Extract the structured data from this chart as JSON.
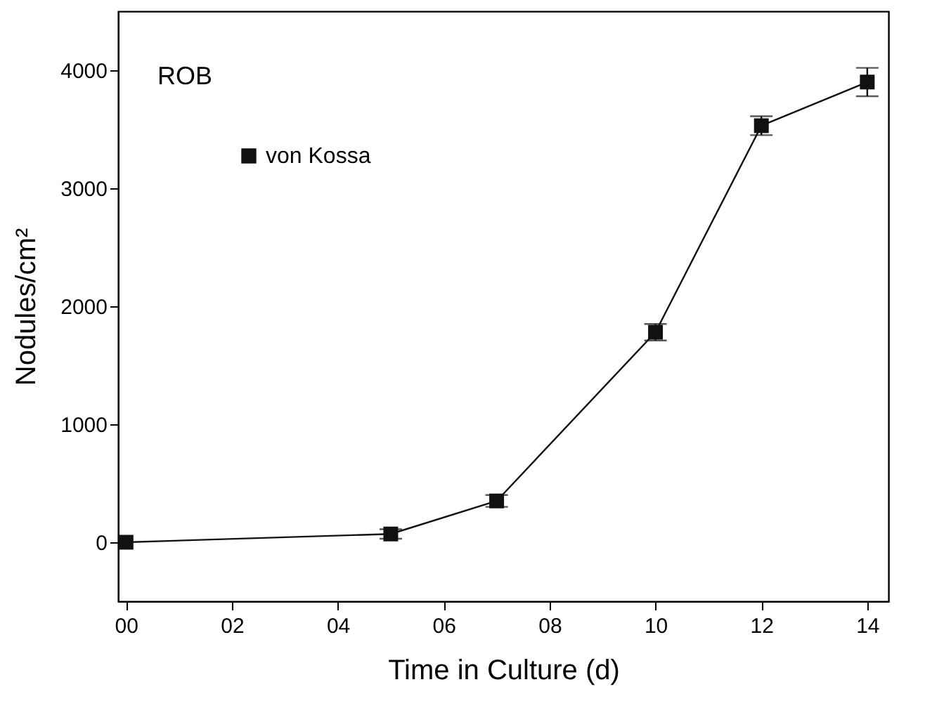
{
  "chart_data": {
    "type": "line",
    "xlabel": "Time in Culture (d)",
    "ylabel": "Nodules/cm²",
    "annotations": [
      "ROB"
    ],
    "x": [
      0,
      5,
      7,
      10,
      12,
      14
    ],
    "series": [
      {
        "name": "von Kossa",
        "color": "#111111",
        "values": [
          0,
          70,
          350,
          1780,
          3530,
          3900
        ],
        "errors": [
          null,
          40,
          50,
          70,
          80,
          120
        ]
      }
    ],
    "xlim": [
      -0.15,
      14.4
    ],
    "xticks": [
      {
        "value": 0,
        "label": "00"
      },
      {
        "value": 2,
        "label": "02"
      },
      {
        "value": 4,
        "label": "04"
      },
      {
        "value": 6,
        "label": "06"
      },
      {
        "value": 8,
        "label": "08"
      },
      {
        "value": 10,
        "label": "10"
      },
      {
        "value": 12,
        "label": "12"
      },
      {
        "value": 14,
        "label": "14"
      }
    ],
    "ylim": [
      -500,
      4500
    ],
    "yticks": [
      0,
      1000,
      2000,
      3000,
      4000
    ],
    "marker": "square",
    "line_style": "solid",
    "legend": "top left",
    "grid": false
  }
}
